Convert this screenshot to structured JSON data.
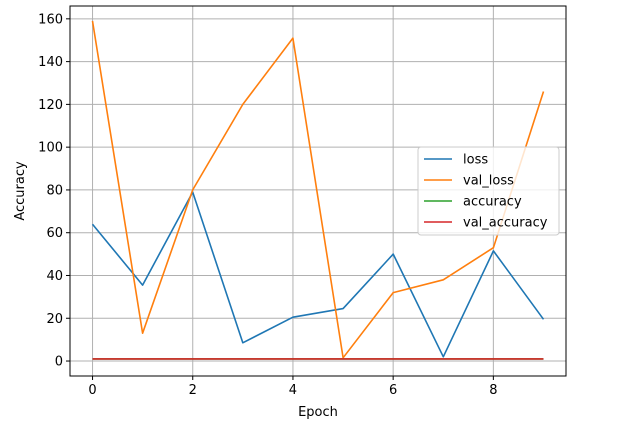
{
  "chart_data": {
    "type": "line",
    "xlabel": "Epoch",
    "ylabel": "Accuracy",
    "x": [
      0,
      1,
      2,
      3,
      4,
      5,
      6,
      7,
      8,
      9
    ],
    "xlim": [
      -0.45,
      9.45
    ],
    "ylim": [
      -7,
      166
    ],
    "xticks": [
      0,
      2,
      4,
      6,
      8
    ],
    "yticks": [
      0,
      20,
      40,
      60,
      80,
      100,
      120,
      140,
      160
    ],
    "grid": true,
    "legend_position": "center-right",
    "series": [
      {
        "name": "loss",
        "color": "#1f77b4",
        "values": [
          64,
          35.5,
          79,
          8.5,
          20.5,
          24.5,
          50,
          2,
          51.5,
          19.5
        ]
      },
      {
        "name": "val_loss",
        "color": "#ff7f0e",
        "values": [
          159,
          13,
          80,
          120,
          151,
          1.5,
          32,
          38,
          53,
          126
        ]
      },
      {
        "name": "accuracy",
        "color": "#2ca02c",
        "values": [
          1,
          1,
          1,
          1,
          1,
          1,
          1,
          1,
          1,
          1
        ]
      },
      {
        "name": "val_accuracy",
        "color": "#d62728",
        "values": [
          1,
          1,
          1,
          1,
          1,
          1,
          1,
          1,
          1,
          1
        ]
      }
    ]
  }
}
